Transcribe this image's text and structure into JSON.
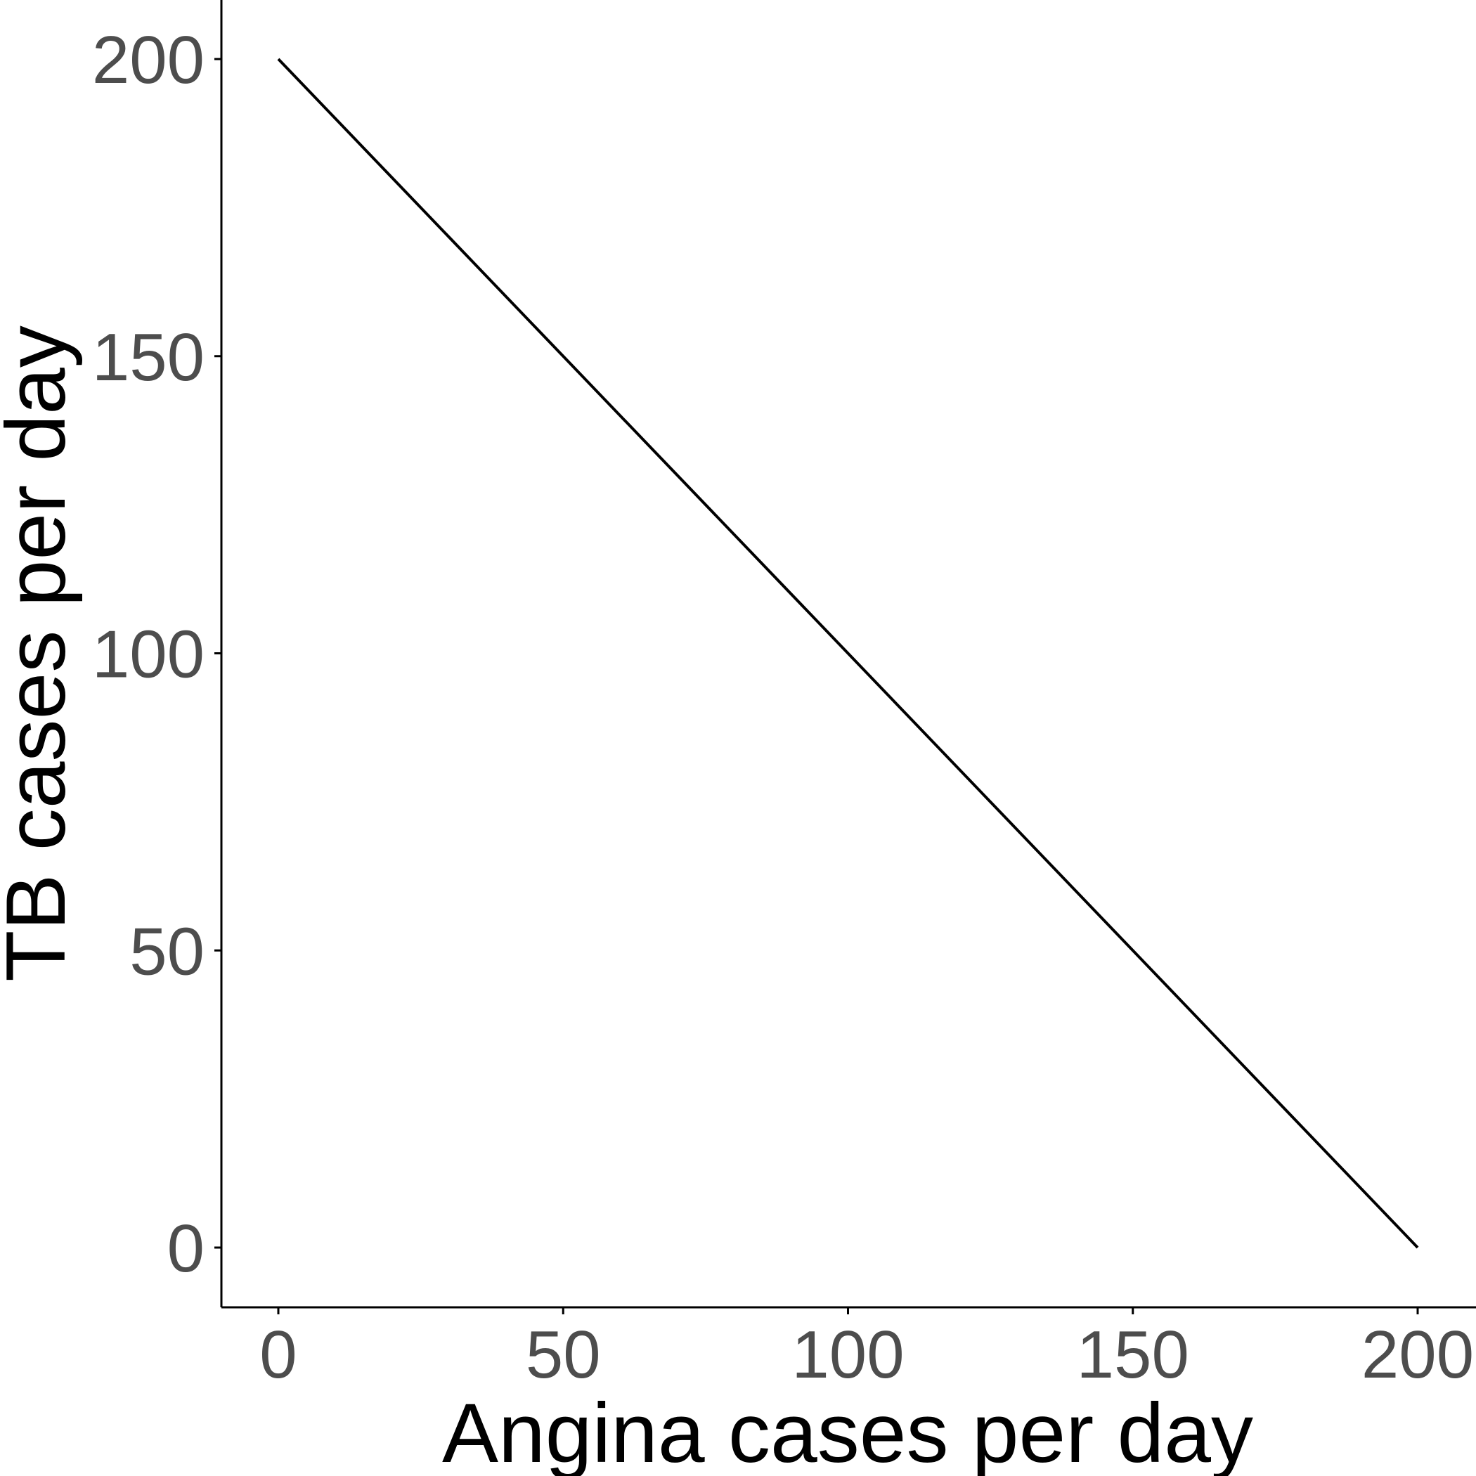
{
  "chart_data": {
    "type": "line",
    "title": "",
    "xlabel": "Angina cases per day",
    "ylabel": "TB cases per day",
    "xlim": [
      -10,
      210
    ],
    "ylim": [
      -10,
      210
    ],
    "x_ticks": [
      0,
      50,
      100,
      150,
      200
    ],
    "x_tick_labels": [
      "0",
      "50",
      "100",
      "150",
      "200"
    ],
    "y_ticks": [
      0,
      50,
      100,
      150,
      200
    ],
    "y_tick_labels": [
      "0",
      "50",
      "100",
      "150",
      "200"
    ],
    "grid": false,
    "series": [
      {
        "x": [
          0,
          200
        ],
        "y": [
          200,
          0
        ],
        "color": "#000000"
      }
    ]
  }
}
